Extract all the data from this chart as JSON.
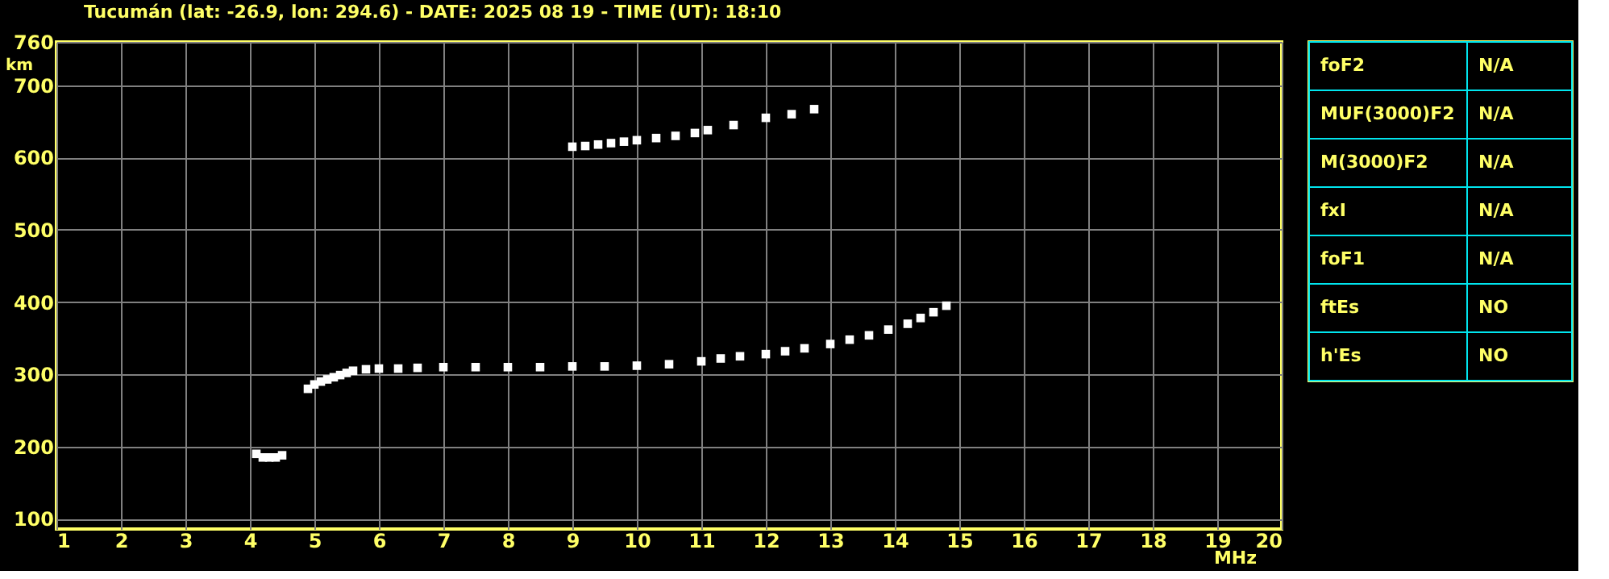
{
  "chart_data": [
    {
      "type": "scatter",
      "title": "Tucumán (lat: -26.9, lon: 294.6) - DATE: 2025 08 19 - TIME (UT): 18:10",
      "xlabel": "MHz",
      "ylabel": "km",
      "marker": "square",
      "grid": true,
      "xlim": [
        1,
        20
      ],
      "ylim": [
        86,
        760
      ],
      "xticks": [
        1,
        2,
        3,
        4,
        5,
        6,
        7,
        8,
        9,
        10,
        11,
        12,
        13,
        14,
        15,
        16,
        17,
        18,
        19,
        20
      ],
      "yticks": [
        100,
        200,
        300,
        400,
        500,
        600,
        700,
        760
      ],
      "series": [
        {
          "color": "#ffffff",
          "x": [
            4.1,
            4.2,
            4.3,
            4.4,
            4.5,
            4.9,
            5.0,
            5.1,
            5.2,
            5.3,
            5.4,
            5.5,
            5.6,
            5.8,
            6.0,
            6.3,
            6.6,
            7.0,
            7.5,
            8.0,
            8.5,
            9.0,
            9.5,
            10.0,
            10.5,
            11.0,
            11.3,
            11.6,
            12.0,
            12.3,
            12.6,
            13.0,
            13.3,
            13.6,
            13.9,
            14.2,
            14.4,
            14.6,
            14.8
          ],
          "values": [
            190,
            185,
            185,
            185,
            188,
            280,
            286,
            290,
            293,
            296,
            299,
            302,
            305,
            307,
            308,
            308,
            309,
            310,
            310,
            310,
            310,
            311,
            311,
            312,
            314,
            318,
            322,
            325,
            328,
            332,
            336,
            342,
            348,
            354,
            362,
            370,
            378,
            386,
            395
          ]
        },
        {
          "color": "#ffffff",
          "x": [
            9.0,
            9.2,
            9.4,
            9.6,
            9.8,
            10.0,
            10.3,
            10.6,
            10.9,
            11.1,
            11.5,
            12.0,
            12.4,
            12.75
          ],
          "values": [
            615,
            616,
            618,
            620,
            622,
            624,
            627,
            630,
            634,
            638,
            645,
            655,
            660,
            667
          ]
        }
      ]
    },
    {
      "type": "other",
      "annotations": [
        "foF2",
        "N/A",
        "MUF(3000)F2",
        "N/A",
        "M(3000)F2",
        "N/A",
        "fxI",
        "N/A",
        "foF1",
        "N/A",
        "ftEs",
        "NO",
        "h'Es",
        "NO"
      ]
    }
  ]
}
